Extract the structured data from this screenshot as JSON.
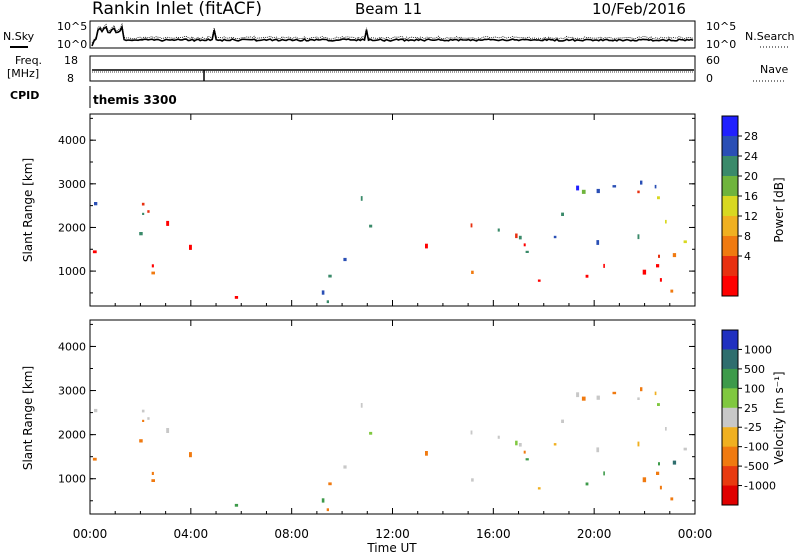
{
  "header": {
    "station": "Rankin Inlet (fitACF)",
    "beam": "Beam 11",
    "date": "10/Feb/2016"
  },
  "noise_panel": {
    "left_label": "N.Sky",
    "right_label": "N.Search",
    "left_ticks": [
      "10^5",
      "10^0"
    ],
    "right_ticks": [
      "10^5",
      "10^0"
    ]
  },
  "freq_panel": {
    "left_label_1": "Freq.",
    "left_label_2": "[MHz]",
    "right_label": "Nave",
    "left_ticks": [
      "18",
      "8"
    ],
    "right_ticks": [
      "60",
      "0"
    ]
  },
  "cpid_panel": {
    "label": "CPID",
    "value": "themis 3300"
  },
  "chart_data": [
    {
      "type": "heatmap",
      "name": "power",
      "ylabel": "Slant Range [km]",
      "yticks": [
        "4000",
        "3000",
        "2000",
        "1000"
      ],
      "ylim": [
        200,
        4600
      ],
      "colorbar_label": "Power [dB]",
      "colorbar_ticks": [
        "28",
        "24",
        "20",
        "16",
        "12",
        "8",
        "4"
      ],
      "colors": [
        "#2020ff",
        "#2a4fb5",
        "#3a8a6a",
        "#6fb43c",
        "#d8d820",
        "#f0b020",
        "#f07a10",
        "#e83010",
        "#ff0000"
      ]
    },
    {
      "type": "heatmap",
      "name": "velocity",
      "ylabel": "Slant Range [km]",
      "yticks": [
        "4000",
        "3000",
        "2000",
        "1000"
      ],
      "ylim": [
        200,
        4600
      ],
      "colorbar_label": "Velocity [m s⁻¹]",
      "colorbar_ticks": [
        "1000",
        "500",
        "100",
        "25",
        "-25",
        "-100",
        "-500",
        "-1000"
      ],
      "colors": [
        "#2030c0",
        "#2f6e6e",
        "#3d9a4a",
        "#80c840",
        "#c8c8c8",
        "#f0b020",
        "#f07a10",
        "#e83a10",
        "#e00000"
      ]
    }
  ],
  "xaxis": {
    "label": "Time UT",
    "ticks": [
      "00:00",
      "04:00",
      "08:00",
      "12:00",
      "16:00",
      "20:00",
      "00:00"
    ]
  }
}
